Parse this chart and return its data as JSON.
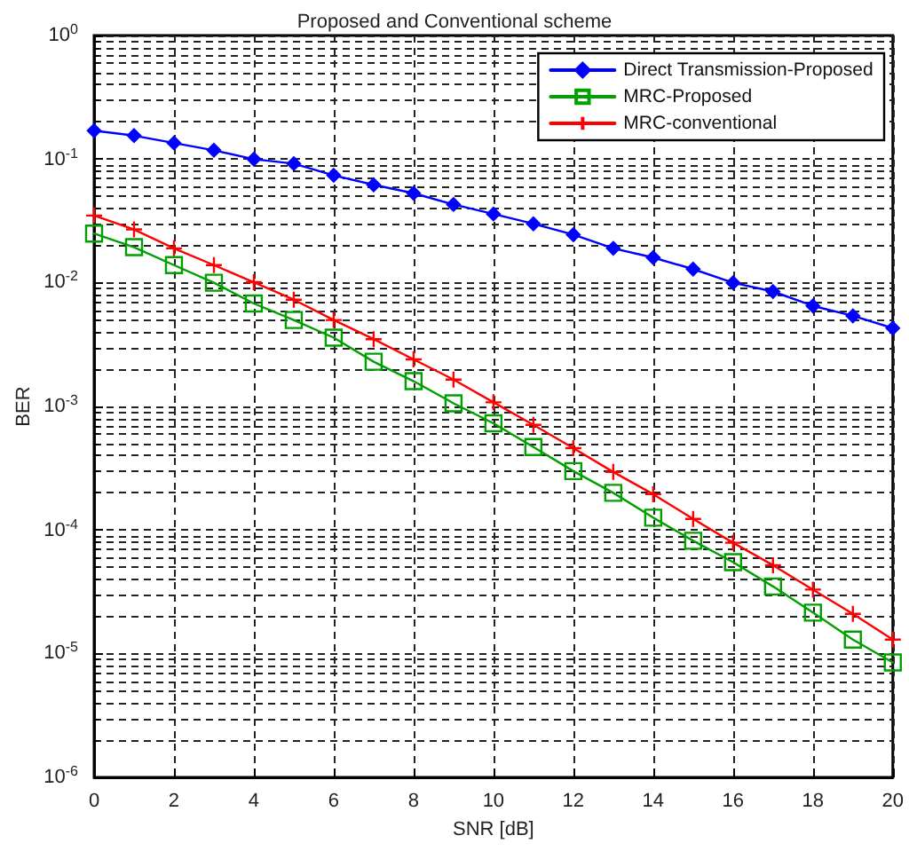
{
  "chart_data": {
    "type": "line",
    "title": "Proposed and Conventional scheme",
    "xlabel": "SNR [dB]",
    "ylabel": "BER",
    "x": [
      0,
      1,
      2,
      3,
      4,
      5,
      6,
      7,
      8,
      9,
      10,
      11,
      12,
      13,
      14,
      15,
      16,
      17,
      18,
      19,
      20
    ],
    "series": [
      {
        "name": "Direct Transmission-Proposed",
        "color": "#0000ff",
        "marker": "diamond",
        "values": [
          0.17,
          0.155,
          0.135,
          0.118,
          0.1,
          0.092,
          0.074,
          0.062,
          0.053,
          0.043,
          0.036,
          0.03,
          0.0245,
          0.019,
          0.016,
          0.0129,
          0.01,
          0.0085,
          0.0065,
          0.0054,
          0.0043
        ]
      },
      {
        "name": "MRC-Proposed",
        "color": "#00a000",
        "marker": "square",
        "values": [
          0.025,
          0.0194,
          0.0139,
          0.01,
          0.0068,
          0.005,
          0.0036,
          0.0023,
          0.0016,
          0.00106,
          0.00073,
          0.00047,
          0.0003,
          0.0002,
          0.000126,
          8.2e-05,
          5.5e-05,
          3.5e-05,
          2.15e-05,
          1.3e-05,
          8.5e-06
        ]
      },
      {
        "name": "MRC-conventional",
        "color": "#ff0000",
        "marker": "cross",
        "values": [
          0.035,
          0.027,
          0.019,
          0.0139,
          0.0101,
          0.0073,
          0.005,
          0.0035,
          0.0024,
          0.00165,
          0.00108,
          0.00071,
          0.00046,
          0.000295,
          0.000195,
          0.000123,
          7.9e-05,
          5.2e-05,
          3.3e-05,
          2.1e-05,
          1.3e-05
        ]
      }
    ],
    "log": "y",
    "xlim": [
      0,
      20
    ],
    "xticks": [
      0,
      2,
      4,
      6,
      8,
      10,
      12,
      14,
      16,
      18,
      20
    ],
    "ylim": [
      1e-06,
      1
    ],
    "yticks": [
      {
        "value": 1e-06,
        "label": "10$^{-6}$"
      },
      {
        "value": 1e-05,
        "label": "10$^{-5}$"
      },
      {
        "value": 0.0001,
        "label": "10$^{-4}$"
      },
      {
        "value": 0.001,
        "label": "10$^{-3}$"
      },
      {
        "value": 0.01,
        "label": "10$^{-2}$"
      },
      {
        "value": 0.1,
        "label": "10$^{-1}$"
      },
      {
        "value": 1,
        "label": "10$^{0}$"
      }
    ],
    "grid": true,
    "legend": "top right",
    "line_style": "solid"
  }
}
